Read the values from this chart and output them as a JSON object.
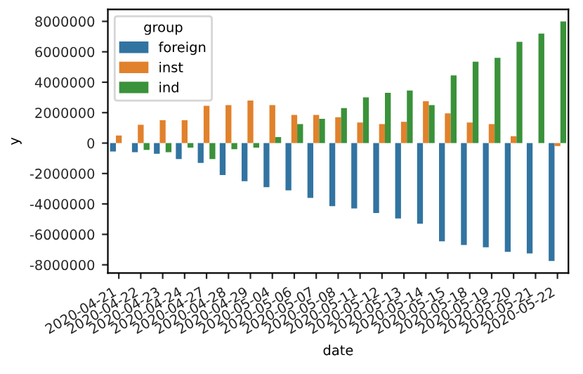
{
  "chart_data": {
    "type": "bar",
    "xlabel": "date",
    "ylabel": "y",
    "legend_title": "group",
    "categories": [
      "2020-04-21",
      "2020-04-22",
      "2020-04-23",
      "2020-04-24",
      "2020-04-27",
      "2020-04-28",
      "2020-04-29",
      "2020-05-04",
      "2020-05-06",
      "2020-05-07",
      "2020-05-08",
      "2020-05-11",
      "2020-05-12",
      "2020-05-13",
      "2020-05-14",
      "2020-05-15",
      "2020-05-18",
      "2020-05-19",
      "2020-05-20",
      "2020-05-21",
      "2020-05-22"
    ],
    "series": [
      {
        "name": "foreign",
        "color": "#3274a1",
        "values": [
          -550000,
          -600000,
          -700000,
          -1050000,
          -1300000,
          -2100000,
          -2500000,
          -2900000,
          -3100000,
          -3600000,
          -4150000,
          -4300000,
          -4600000,
          -4950000,
          -5300000,
          -6450000,
          -6700000,
          -6850000,
          -7150000,
          -7250000,
          -7750000
        ]
      },
      {
        "name": "inst",
        "color": "#e1812c",
        "values": [
          500000,
          1200000,
          1500000,
          1500000,
          2450000,
          2500000,
          2800000,
          2500000,
          1850000,
          1850000,
          1700000,
          1350000,
          1250000,
          1400000,
          2750000,
          1950000,
          1350000,
          1250000,
          450000,
          0,
          -200000
        ]
      },
      {
        "name": "ind",
        "color": "#3a923a",
        "values": [
          0,
          -450000,
          -600000,
          -300000,
          -1050000,
          -400000,
          -300000,
          400000,
          1250000,
          1600000,
          2300000,
          3000000,
          3300000,
          3450000,
          2500000,
          4450000,
          5350000,
          5600000,
          6650000,
          7200000,
          8000000
        ]
      }
    ],
    "ylim": [
      -8540000,
      8790000
    ],
    "yticks": [
      -8000000,
      -6000000,
      -4000000,
      -2000000,
      0,
      2000000,
      4000000,
      6000000,
      8000000
    ],
    "legend": "top left",
    "grid": false
  }
}
